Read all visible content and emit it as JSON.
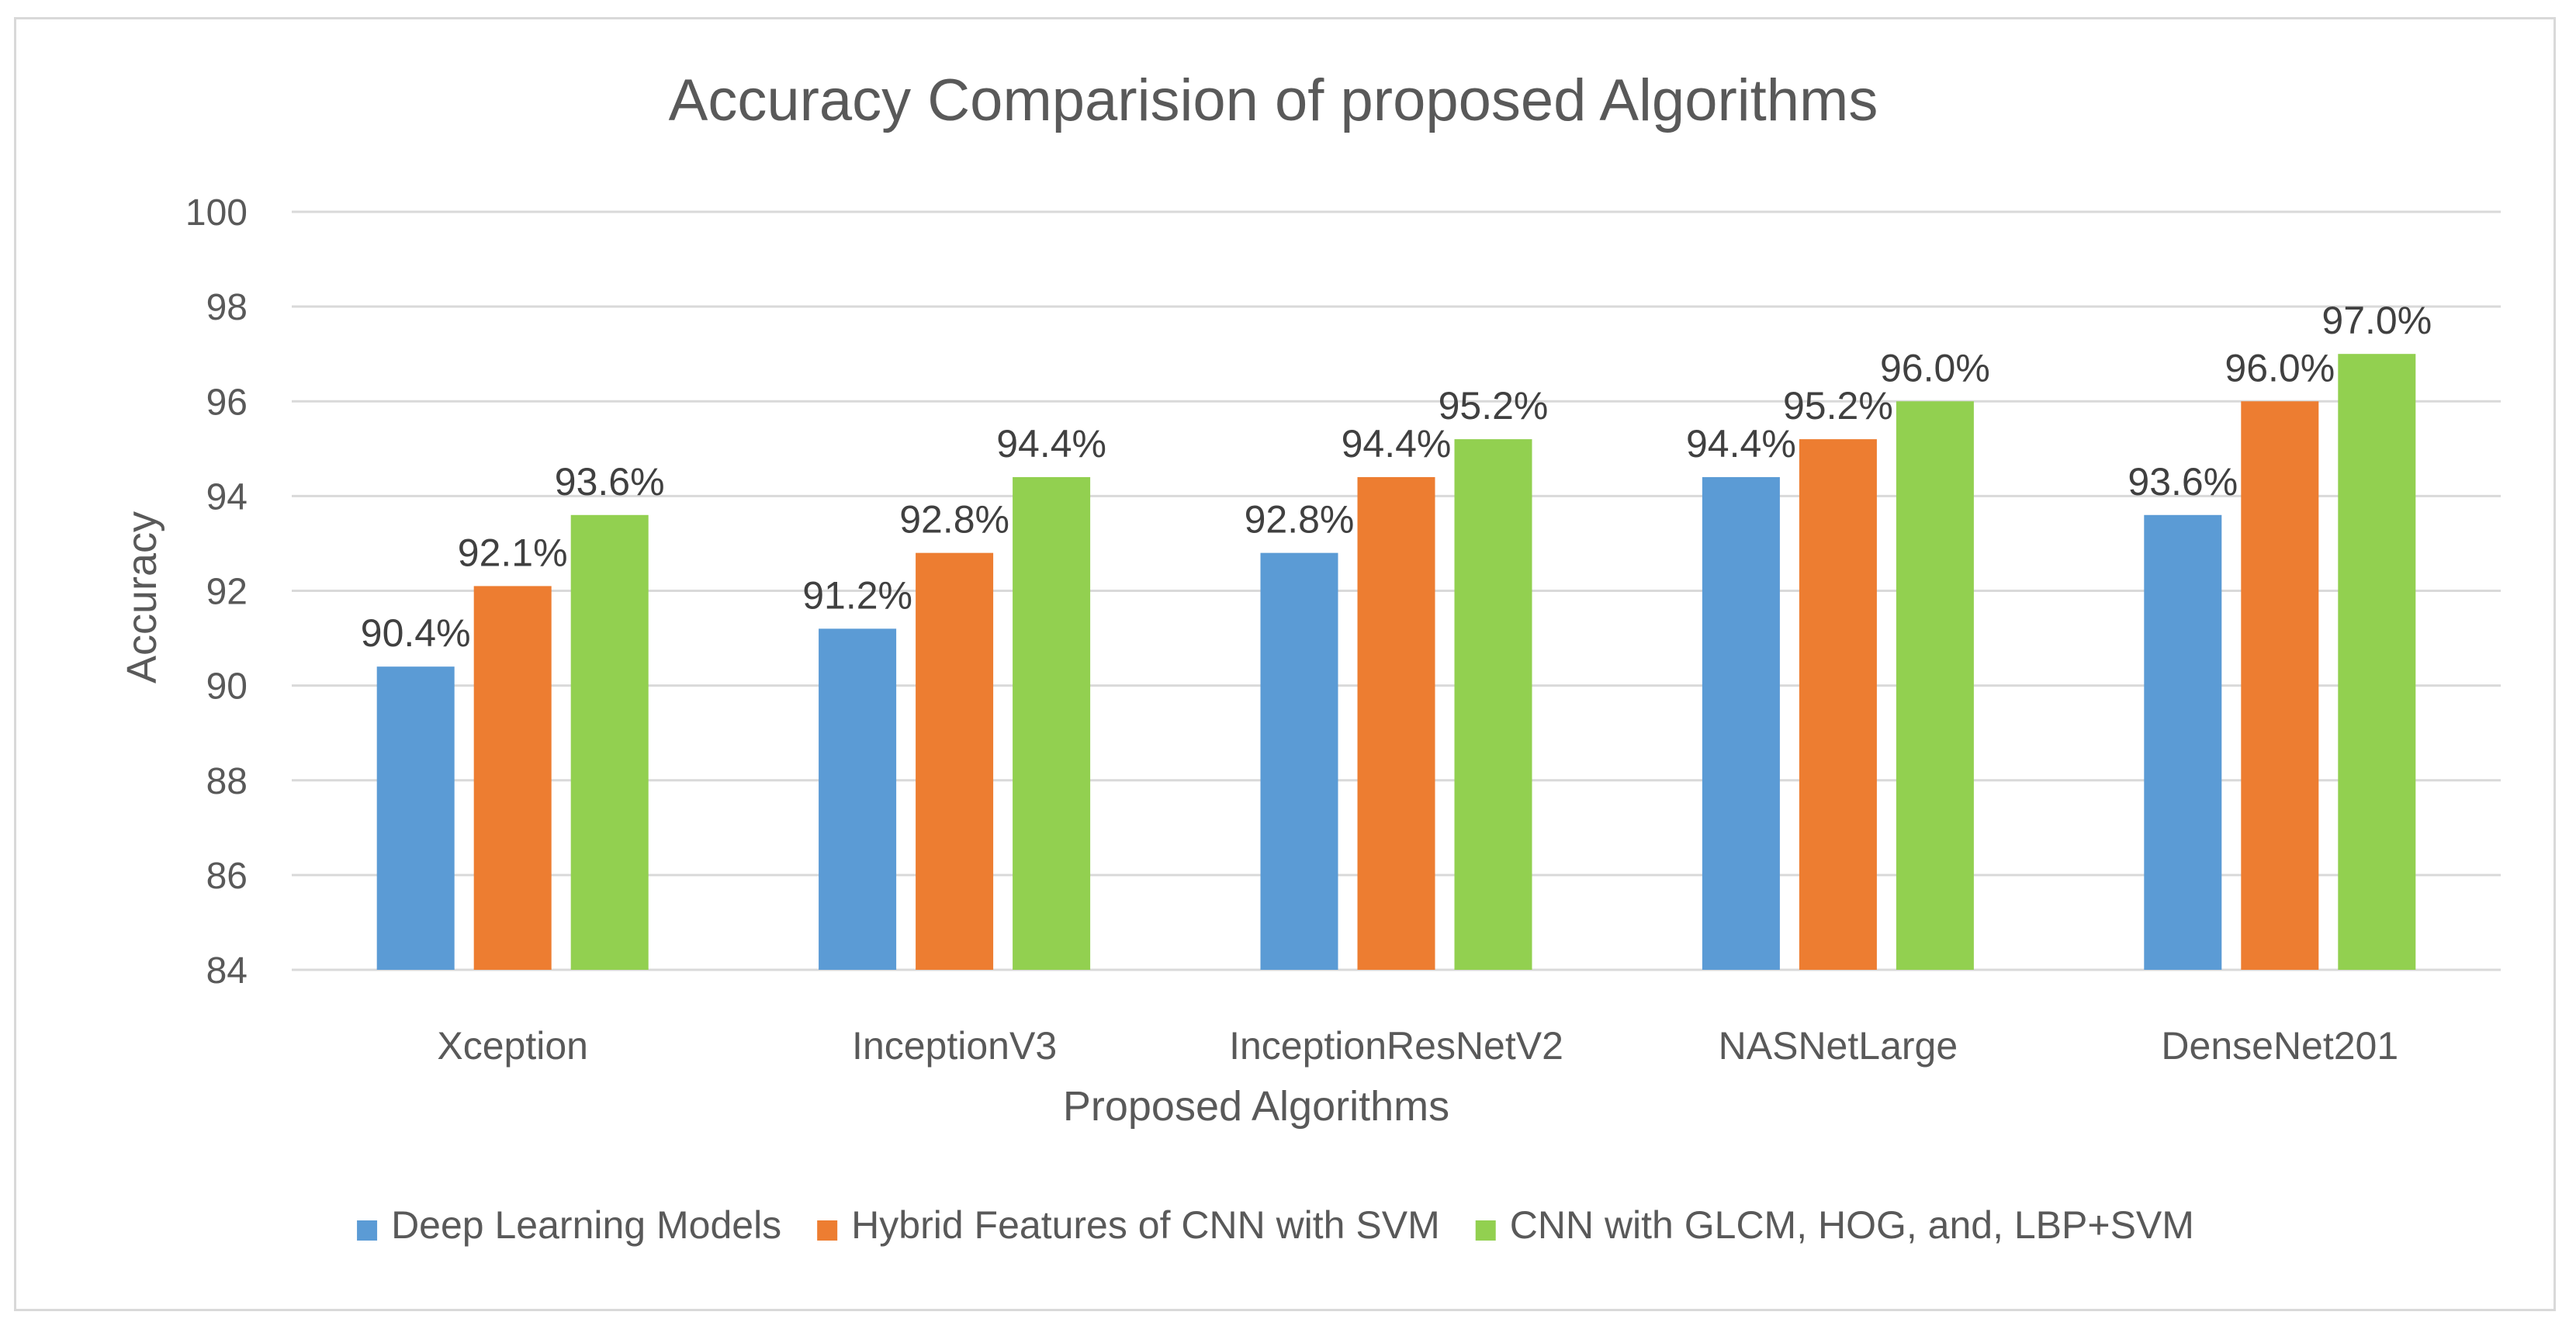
{
  "chart_data": {
    "type": "bar",
    "title": "Accuracy Comparision of proposed Algorithms",
    "xlabel": "Proposed Algorithms",
    "ylabel": "Accuracy",
    "ylim": [
      84,
      100
    ],
    "yticks": [
      84,
      86,
      88,
      90,
      92,
      94,
      96,
      98,
      100
    ],
    "grid": true,
    "legend_position": "bottom",
    "categories": [
      "Xception",
      "InceptionV3",
      "InceptionResNetV2",
      "NASNetLarge",
      "DenseNet201"
    ],
    "series": [
      {
        "name": "Deep Learning Models",
        "color": "#5b9bd5",
        "values": [
          90.4,
          91.2,
          92.8,
          94.4,
          93.6
        ],
        "labels": [
          "90.4%",
          "91.2%",
          "92.8%",
          "94.4%",
          "93.6%"
        ]
      },
      {
        "name": "Hybrid Features of CNN with SVM",
        "color": "#ed7d31",
        "values": [
          92.1,
          92.8,
          94.4,
          95.2,
          96.0
        ],
        "labels": [
          "92.1%",
          "92.8%",
          "94.4%",
          "95.2%",
          "96.0%"
        ]
      },
      {
        "name": "CNN with GLCM, HOG, and, LBP+SVM",
        "color": "#92d050",
        "values": [
          93.6,
          94.4,
          95.2,
          96.0,
          97.0
        ],
        "labels": [
          "93.6%",
          "94.4%",
          "95.2%",
          "96.0%",
          "97.0%"
        ]
      }
    ]
  }
}
